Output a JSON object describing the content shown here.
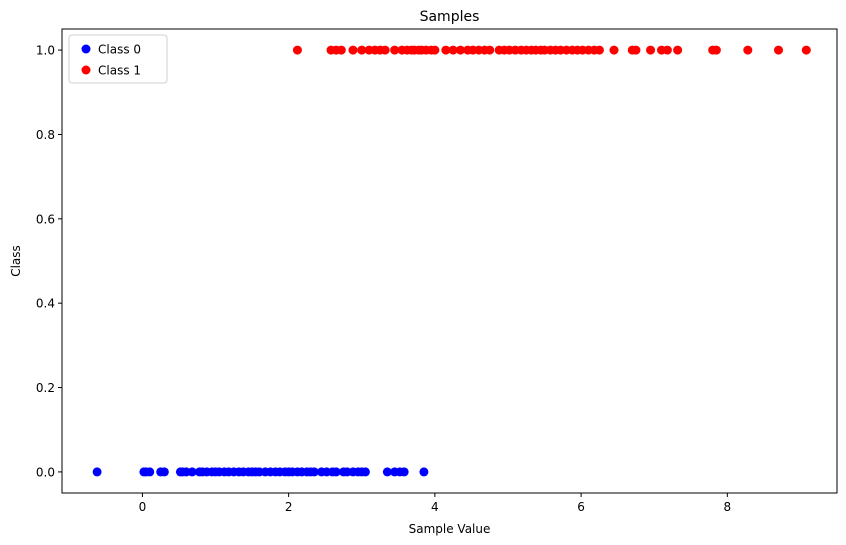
{
  "chart_data": {
    "type": "scatter",
    "title": "Samples",
    "xlabel": "Sample Value",
    "ylabel": "Class",
    "xlim": [
      -1.1,
      9.5
    ],
    "ylim": [
      -0.05,
      1.05
    ],
    "xticks": [
      0,
      2,
      4,
      6,
      8
    ],
    "yticks": [
      0.0,
      0.2,
      0.4,
      0.6,
      0.8,
      1.0
    ],
    "xtick_labels": [
      "0",
      "2",
      "4",
      "6",
      "8"
    ],
    "ytick_labels": [
      "0.0",
      "0.2",
      "0.4",
      "0.6",
      "0.8",
      "1.0"
    ],
    "grid": false,
    "legend_position": "top-left",
    "series": [
      {
        "name": "Class 0",
        "color": "#0000ff",
        "y": 0,
        "x": [
          -0.62,
          0.02,
          0.05,
          0.1,
          0.25,
          0.3,
          0.52,
          0.55,
          0.6,
          0.68,
          0.78,
          0.82,
          0.88,
          0.95,
          1.0,
          1.05,
          1.12,
          1.18,
          1.25,
          1.32,
          1.38,
          1.45,
          1.5,
          1.55,
          1.6,
          1.68,
          1.75,
          1.82,
          1.88,
          1.95,
          2.0,
          2.05,
          2.12,
          2.18,
          2.25,
          2.3,
          2.35,
          2.45,
          2.52,
          2.6,
          2.65,
          2.75,
          2.8,
          2.88,
          2.95,
          3.0,
          3.05,
          3.35,
          3.45,
          3.52,
          3.58,
          3.85
        ]
      },
      {
        "name": "Class 1",
        "color": "#ff0000",
        "y": 1,
        "x": [
          2.12,
          2.58,
          2.65,
          2.72,
          2.88,
          3.0,
          3.1,
          3.18,
          3.25,
          3.32,
          3.45,
          3.55,
          3.62,
          3.68,
          3.72,
          3.78,
          3.82,
          3.88,
          3.95,
          4.0,
          4.15,
          4.25,
          4.35,
          4.45,
          4.52,
          4.6,
          4.68,
          4.75,
          4.88,
          4.95,
          5.02,
          5.1,
          5.18,
          5.25,
          5.32,
          5.38,
          5.45,
          5.5,
          5.58,
          5.65,
          5.72,
          5.8,
          5.88,
          5.95,
          6.02,
          6.1,
          6.18,
          6.25,
          6.45,
          6.7,
          6.75,
          6.95,
          7.1,
          7.18,
          7.32,
          7.8,
          7.85,
          8.28,
          8.7,
          9.08
        ]
      }
    ]
  }
}
